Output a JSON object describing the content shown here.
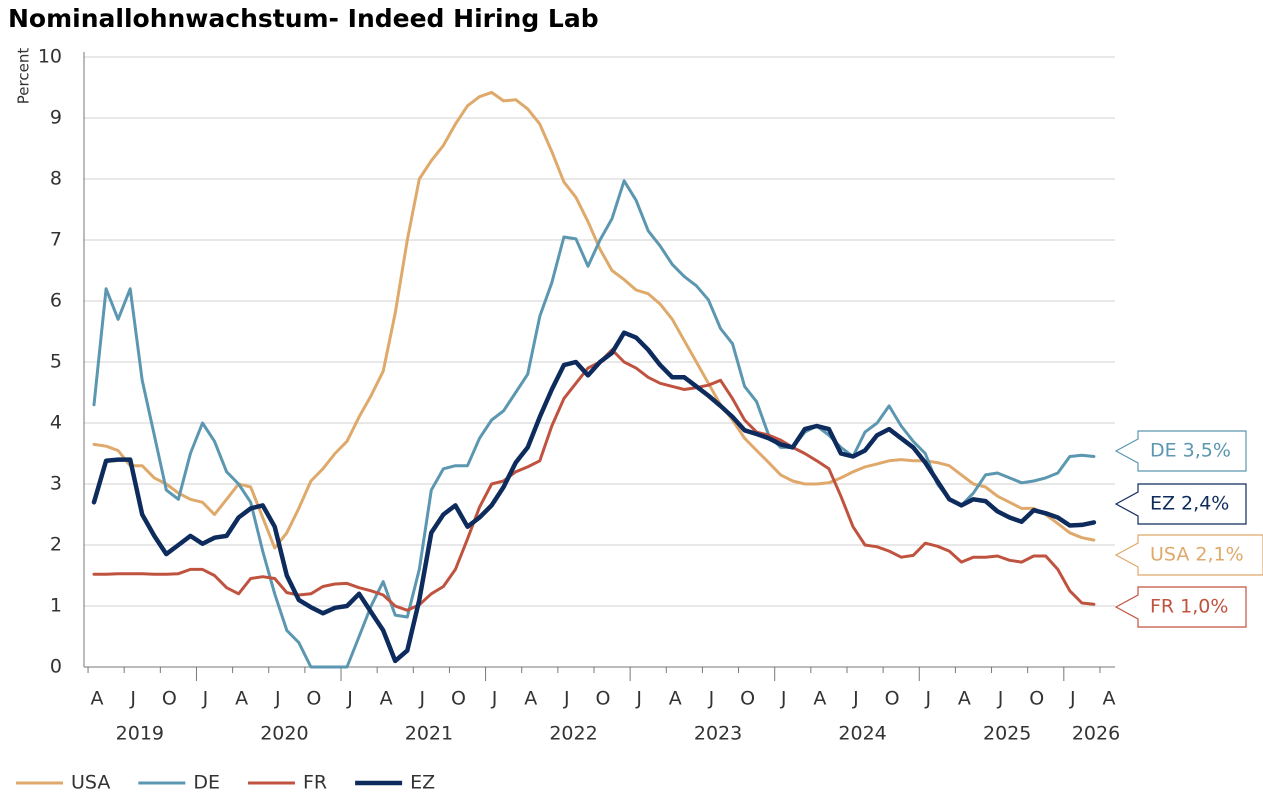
{
  "chart_data": {
    "type": "line",
    "title": "Nominallohnwachstum- Indeed Hiring Lab",
    "y_label": "Percent",
    "x": [
      "2019-04",
      "2019-05",
      "2019-06",
      "2019-07",
      "2019-08",
      "2019-09",
      "2019-10",
      "2019-11",
      "2019-12",
      "2020-01",
      "2020-02",
      "2020-03",
      "2020-04",
      "2020-05",
      "2020-06",
      "2020-07",
      "2020-08",
      "2020-09",
      "2020-10",
      "2020-11",
      "2020-12",
      "2021-01",
      "2021-02",
      "2021-03",
      "2021-04",
      "2021-05",
      "2021-06",
      "2021-07",
      "2021-08",
      "2021-09",
      "2021-10",
      "2021-11",
      "2021-12",
      "2022-01",
      "2022-02",
      "2022-03",
      "2022-04",
      "2022-05",
      "2022-06",
      "2022-07",
      "2022-08",
      "2022-09",
      "2022-10",
      "2022-11",
      "2022-12",
      "2023-01",
      "2023-02",
      "2023-03",
      "2023-04",
      "2023-05",
      "2023-06",
      "2023-07",
      "2023-08",
      "2023-09",
      "2023-10",
      "2023-11",
      "2023-12",
      "2024-01",
      "2024-02",
      "2024-03",
      "2024-04",
      "2024-05",
      "2024-06",
      "2024-07",
      "2024-08",
      "2024-09",
      "2024-10",
      "2024-11",
      "2024-12",
      "2025-01",
      "2025-02",
      "2025-03",
      "2025-04",
      "2025-05",
      "2025-06",
      "2025-07",
      "2025-08",
      "2025-09",
      "2025-10",
      "2025-11",
      "2025-12",
      "2026-01",
      "2026-02",
      "2026-03"
    ],
    "xlim": [
      "2019-03",
      "2026-05"
    ],
    "xticks": [
      {
        "value": "2019-04",
        "label": "A"
      },
      {
        "value": "2019-07",
        "label": "J"
      },
      {
        "value": "2019-10",
        "label": "O"
      },
      {
        "value": "2020-01",
        "label": "J"
      },
      {
        "value": "2020-04",
        "label": "A"
      },
      {
        "value": "2020-07",
        "label": "J"
      },
      {
        "value": "2020-10",
        "label": "O"
      },
      {
        "value": "2021-01",
        "label": "J"
      },
      {
        "value": "2021-04",
        "label": "A"
      },
      {
        "value": "2021-07",
        "label": "J"
      },
      {
        "value": "2021-10",
        "label": "O"
      },
      {
        "value": "2022-01",
        "label": "J"
      },
      {
        "value": "2022-04",
        "label": "A"
      },
      {
        "value": "2022-07",
        "label": "J"
      },
      {
        "value": "2022-10",
        "label": "O"
      },
      {
        "value": "2023-01",
        "label": "J"
      },
      {
        "value": "2023-04",
        "label": "A"
      },
      {
        "value": "2023-07",
        "label": "J"
      },
      {
        "value": "2023-10",
        "label": "O"
      },
      {
        "value": "2024-01",
        "label": "J"
      },
      {
        "value": "2024-04",
        "label": "A"
      },
      {
        "value": "2024-07",
        "label": "J"
      },
      {
        "value": "2024-10",
        "label": "O"
      },
      {
        "value": "2025-01",
        "label": "J"
      },
      {
        "value": "2025-04",
        "label": "A"
      },
      {
        "value": "2025-07",
        "label": "J"
      },
      {
        "value": "2025-10",
        "label": "O"
      },
      {
        "value": "2026-01",
        "label": "J"
      },
      {
        "value": "2026-04",
        "label": "A"
      }
    ],
    "x_years": [
      "2019",
      "2020",
      "2021",
      "2022",
      "2023",
      "2024",
      "2025",
      "2026"
    ],
    "ylim": [
      0,
      10
    ],
    "yticks": [
      0,
      1,
      2,
      3,
      4,
      5,
      6,
      7,
      8,
      9,
      10
    ],
    "grid": true,
    "legend": "bottom",
    "series": [
      {
        "name": "USA",
        "color": "#dfa96b",
        "values": [
          3.65,
          3.62,
          3.55,
          3.3,
          3.3,
          3.1,
          3.0,
          2.85,
          2.75,
          2.7,
          2.5,
          2.75,
          3.0,
          2.95,
          2.45,
          1.95,
          2.2,
          2.6,
          3.05,
          3.25,
          3.5,
          3.7,
          4.1,
          4.45,
          4.85,
          5.8,
          7.0,
          8.0,
          8.3,
          8.55,
          8.9,
          9.2,
          9.35,
          9.42,
          9.28,
          9.3,
          9.15,
          8.9,
          8.45,
          7.95,
          7.7,
          7.3,
          6.85,
          6.5,
          6.35,
          6.18,
          6.12,
          5.95,
          5.7,
          5.35,
          5.0,
          4.65,
          4.3,
          4.05,
          3.75,
          3.55,
          3.35,
          3.15,
          3.05,
          3.0,
          3.0,
          3.02,
          3.1,
          3.2,
          3.28,
          3.33,
          3.38,
          3.4,
          3.38,
          3.38,
          3.35,
          3.3,
          3.15,
          3.0,
          2.95,
          2.8,
          2.7,
          2.6,
          2.6,
          2.5,
          2.35,
          2.2,
          2.12,
          2.08
        ]
      },
      {
        "name": "DE",
        "color": "#5b97b0",
        "values": [
          4.3,
          6.2,
          5.7,
          6.2,
          4.7,
          3.8,
          2.9,
          2.75,
          3.5,
          4.0,
          3.7,
          3.2,
          3.0,
          2.7,
          1.9,
          1.2,
          0.6,
          0.4,
          0,
          0,
          0,
          0,
          0.5,
          1.0,
          1.4,
          0.85,
          0.82,
          1.6,
          2.9,
          3.25,
          3.3,
          3.3,
          3.75,
          4.05,
          4.2,
          4.5,
          4.8,
          5.75,
          6.3,
          7.05,
          7.02,
          6.57,
          7.0,
          7.35,
          7.97,
          7.65,
          7.15,
          6.9,
          6.6,
          6.4,
          6.25,
          6.02,
          5.55,
          5.3,
          4.6,
          4.35,
          3.8,
          3.6,
          3.6,
          3.85,
          3.95,
          3.8,
          3.6,
          3.45,
          3.85,
          4.0,
          4.28,
          3.95,
          3.7,
          3.5,
          3.0,
          2.75,
          2.65,
          2.85,
          3.15,
          3.18,
          3.1,
          3.02,
          3.05,
          3.1,
          3.18,
          3.45,
          3.47,
          3.45
        ]
      },
      {
        "name": "FR",
        "color": "#c0533f",
        "values": [
          1.52,
          1.52,
          1.53,
          1.53,
          1.53,
          1.52,
          1.52,
          1.53,
          1.6,
          1.6,
          1.5,
          1.3,
          1.2,
          1.45,
          1.48,
          1.45,
          1.22,
          1.18,
          1.2,
          1.32,
          1.36,
          1.37,
          1.3,
          1.25,
          1.18,
          1.0,
          0.93,
          1.02,
          1.2,
          1.32,
          1.6,
          2.1,
          2.62,
          3.0,
          3.05,
          3.2,
          3.28,
          3.38,
          3.95,
          4.4,
          4.65,
          4.9,
          5.0,
          5.2,
          5.0,
          4.9,
          4.75,
          4.65,
          4.6,
          4.55,
          4.58,
          4.62,
          4.7,
          4.4,
          4.05,
          3.85,
          3.8,
          3.72,
          3.6,
          3.5,
          3.38,
          3.25,
          2.8,
          2.3,
          2.0,
          1.97,
          1.9,
          1.8,
          1.83,
          2.03,
          1.98,
          1.9,
          1.72,
          1.8,
          1.8,
          1.82,
          1.75,
          1.72,
          1.82,
          1.82,
          1.6,
          1.25,
          1.05,
          1.03
        ]
      },
      {
        "name": "EZ",
        "color": "#0d2b5c",
        "values": [
          2.7,
          3.38,
          3.4,
          3.4,
          2.5,
          2.15,
          1.85,
          2.0,
          2.15,
          2.02,
          2.12,
          2.15,
          2.45,
          2.6,
          2.65,
          2.3,
          1.5,
          1.1,
          0.98,
          0.88,
          0.97,
          1.0,
          1.2,
          0.9,
          0.6,
          0.1,
          0.27,
          1.1,
          2.2,
          2.5,
          2.65,
          2.3,
          2.45,
          2.65,
          2.95,
          3.35,
          3.6,
          4.1,
          4.55,
          4.95,
          5.0,
          4.78,
          5.0,
          5.15,
          5.48,
          5.4,
          5.2,
          4.95,
          4.75,
          4.75,
          4.6,
          4.45,
          4.28,
          4.1,
          3.88,
          3.82,
          3.75,
          3.65,
          3.6,
          3.9,
          3.95,
          3.9,
          3.5,
          3.45,
          3.55,
          3.8,
          3.9,
          3.75,
          3.6,
          3.35,
          3.05,
          2.75,
          2.65,
          2.75,
          2.72,
          2.55,
          2.45,
          2.38,
          2.57,
          2.52,
          2.45,
          2.32,
          2.33,
          2.37
        ]
      }
    ],
    "annotations": [
      {
        "text": "DE 3,5%",
        "color": "#5b97b0"
      },
      {
        "text": "EZ 2,4%",
        "color": "#0d2b5c"
      },
      {
        "text": "USA 2,1%",
        "color": "#dfa96b"
      },
      {
        "text": "FR 1,0%",
        "color": "#c0533f"
      }
    ]
  }
}
